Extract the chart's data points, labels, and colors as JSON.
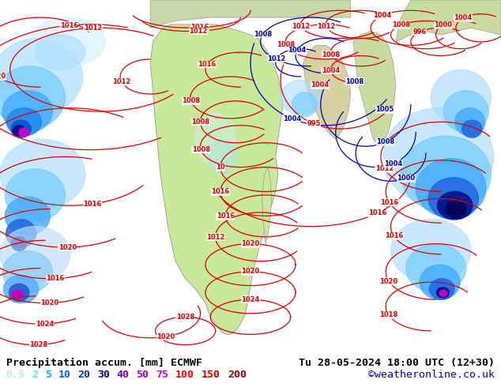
{
  "title_left": "Precipitation accum. [mm] ECMWF",
  "title_right": "Tu 28-05-2024 18:00 UTC (12+30)",
  "credit": "©weatheronline.co.uk",
  "legend_values": [
    "0.5",
    "2",
    "5",
    "10",
    "20",
    "30",
    "40",
    "50",
    "75",
    "100",
    "150",
    "200"
  ],
  "legend_colors": [
    "#aaeeff",
    "#55ddff",
    "#00aaff",
    "#0066ff",
    "#0033cc",
    "#000099",
    "#6600cc",
    "#9900cc",
    "#cc00cc",
    "#ff0000",
    "#cc0000",
    "#880000"
  ],
  "bg_color": "#e0e8f0",
  "land_africa": "#c8e89a",
  "land_arabia": "#d8d0a0",
  "land_india": "#c8dca0",
  "land_europe": "#c8d8a8",
  "ocean_color": "#dceef8",
  "precip_light": "#aaddff",
  "precip_medium": "#66bbff",
  "precip_heavy": "#2266dd",
  "precip_intense": "#001188",
  "isobar_red": "#dd0000",
  "isobar_blue": "#0000cc",
  "text_color": "#000000",
  "credit_color": "#0000cc",
  "bottom_bar_color": "#ffffff",
  "figsize": [
    6.34,
    4.9
  ],
  "dpi": 100
}
